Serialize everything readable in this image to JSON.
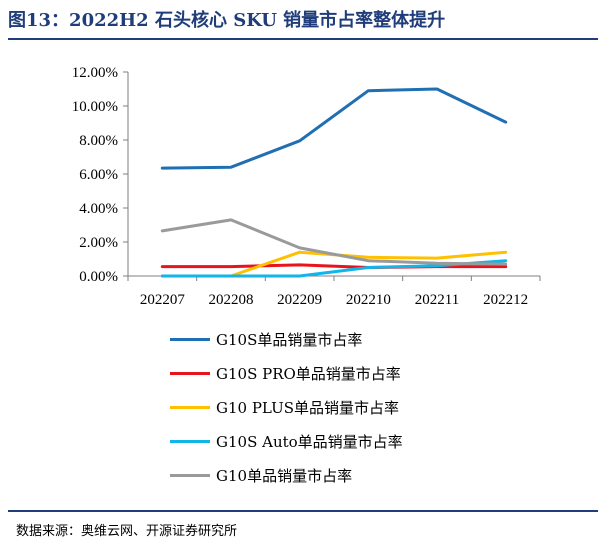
{
  "figure": {
    "title": "图13：2022H2 石头核心 SKU 销量市占率整体提升",
    "source": "数据来源：奥维云网、开源证券研究所"
  },
  "chart_data": {
    "type": "line",
    "title": "图13：2022H2 石头核心 SKU 销量市占率整体提升",
    "xlabel": "",
    "ylabel": "",
    "categories": [
      "202207",
      "202208",
      "202209",
      "202210",
      "202211",
      "202212"
    ],
    "ylim": [
      0,
      12
    ],
    "yticks": [
      0,
      2,
      4,
      6,
      8,
      10,
      12
    ],
    "ytick_labels": [
      "0.00%",
      "2.00%",
      "4.00%",
      "6.00%",
      "8.00%",
      "10.00%",
      "12.00%"
    ],
    "grid": false,
    "legend_position": "bottom",
    "series": [
      {
        "name": "G10S单品销量市占率",
        "color": "#1f6fb2",
        "values": [
          6.35,
          6.4,
          7.95,
          10.9,
          11.0,
          9.05
        ]
      },
      {
        "name": "G10S PRO单品销量市占率",
        "color": "#e8141b",
        "values": [
          0.55,
          0.55,
          0.65,
          0.5,
          0.55,
          0.55
        ]
      },
      {
        "name": "G10 PLUS单品销量市占率",
        "color": "#ffc000",
        "values": [
          0.0,
          0.0,
          1.4,
          1.1,
          1.05,
          1.4
        ]
      },
      {
        "name": "G10S Auto单品销量市占率",
        "color": "#12b5ea",
        "values": [
          0.0,
          0.0,
          0.0,
          0.5,
          0.6,
          0.9
        ]
      },
      {
        "name": "G10单品销量市占率",
        "color": "#9a9a9a",
        "values": [
          2.65,
          3.3,
          1.65,
          0.9,
          0.75,
          0.7
        ]
      }
    ]
  }
}
